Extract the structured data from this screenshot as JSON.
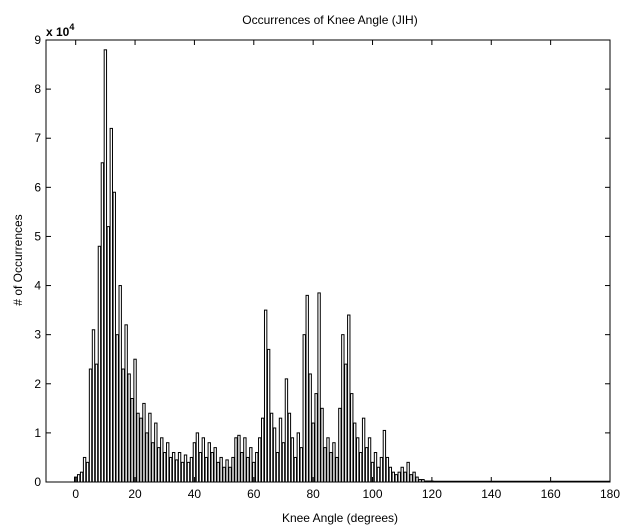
{
  "chart_data": {
    "type": "bar",
    "title": "Occurrences of Knee Angle (JIH)",
    "xlabel": "Knee Angle (degrees)",
    "ylabel": "# of Occurrences",
    "y_multiplier_base": "x 10",
    "y_multiplier_exp": "4",
    "xlim": [
      -10,
      180
    ],
    "ylim": [
      0,
      9
    ],
    "x_ticks": [
      "0",
      "20",
      "40",
      "60",
      "80",
      "100",
      "120",
      "140",
      "160",
      "180"
    ],
    "y_ticks": [
      "0",
      "1",
      "2",
      "3",
      "4",
      "5",
      "6",
      "7",
      "8",
      "9"
    ],
    "grid": false,
    "x": [
      0,
      1,
      2,
      3,
      4,
      5,
      6,
      7,
      8,
      9,
      10,
      11,
      12,
      13,
      14,
      15,
      16,
      17,
      18,
      19,
      20,
      21,
      22,
      23,
      24,
      25,
      26,
      27,
      28,
      29,
      30,
      31,
      32,
      33,
      34,
      35,
      36,
      37,
      38,
      39,
      40,
      41,
      42,
      43,
      44,
      45,
      46,
      47,
      48,
      49,
      50,
      51,
      52,
      53,
      54,
      55,
      56,
      57,
      58,
      59,
      60,
      61,
      62,
      63,
      64,
      65,
      66,
      67,
      68,
      69,
      70,
      71,
      72,
      73,
      74,
      75,
      76,
      77,
      78,
      79,
      80,
      81,
      82,
      83,
      84,
      85,
      86,
      87,
      88,
      89,
      90,
      91,
      92,
      93,
      94,
      95,
      96,
      97,
      98,
      99,
      100,
      101,
      102,
      103,
      104,
      105,
      106,
      107,
      108,
      109,
      110,
      111,
      112,
      113,
      114,
      115,
      116,
      117,
      118,
      119,
      120
    ],
    "values": [
      0.1,
      0.15,
      0.2,
      0.5,
      0.4,
      2.3,
      3.1,
      2.4,
      4.8,
      6.5,
      8.8,
      5.2,
      7.2,
      5.9,
      3.0,
      4.0,
      2.3,
      3.2,
      2.2,
      1.7,
      2.5,
      1.4,
      1.3,
      1.6,
      1.0,
      1.4,
      0.8,
      1.2,
      0.7,
      0.9,
      0.6,
      0.8,
      0.5,
      0.6,
      0.45,
      0.6,
      0.4,
      0.55,
      0.4,
      0.5,
      0.8,
      1.0,
      0.6,
      0.9,
      0.5,
      0.8,
      0.6,
      0.7,
      0.4,
      0.5,
      0.3,
      0.45,
      0.3,
      0.5,
      0.9,
      0.95,
      0.6,
      0.9,
      0.5,
      0.7,
      0.4,
      0.6,
      0.9,
      1.3,
      3.5,
      2.7,
      1.4,
      1.1,
      0.6,
      1.3,
      0.8,
      2.1,
      1.4,
      0.9,
      0.5,
      1.0,
      0.7,
      3.0,
      3.8,
      2.2,
      1.2,
      1.8,
      3.85,
      1.5,
      0.7,
      0.9,
      0.6,
      0.8,
      0.5,
      1.5,
      3.0,
      2.4,
      3.4,
      1.8,
      1.2,
      0.9,
      0.6,
      1.3,
      0.7,
      0.9,
      0.4,
      0.6,
      0.3,
      0.5,
      1.05,
      0.5,
      0.3,
      0.2,
      0.15,
      0.2,
      0.3,
      0.2,
      0.4,
      0.15,
      0.2,
      0.1,
      0.05,
      0.05,
      0.02,
      0.02,
      0.02
    ]
  }
}
